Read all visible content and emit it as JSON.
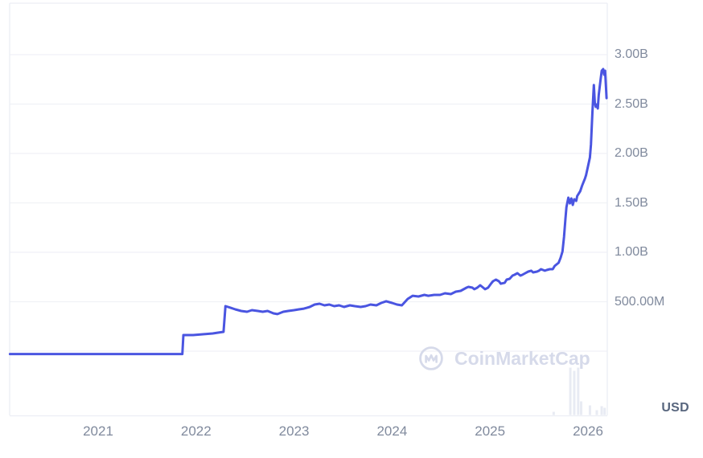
{
  "watermark": {
    "text": "CoinMarketCap"
  },
  "chart_data": {
    "type": "line",
    "title": "",
    "unit": "USD",
    "value_scale": "millions_usd",
    "legend": "none",
    "grid": "horizontal_only",
    "line_color": "#4a55e1",
    "x_axis": {
      "ticks": [
        {
          "label": "2021",
          "year": 2021
        },
        {
          "label": "2022",
          "year": 2022
        },
        {
          "label": "2023",
          "year": 2023
        },
        {
          "label": "2024",
          "year": 2024
        },
        {
          "label": "2025",
          "year": 2025
        },
        {
          "label": "2026",
          "year": 2026
        }
      ],
      "range_years": [
        2020.1,
        2026.28
      ]
    },
    "y_axis": {
      "position": "right",
      "ticks": [
        {
          "label": "3.00B",
          "value_m": 3000
        },
        {
          "label": "2.50B",
          "value_m": 2500
        },
        {
          "label": "2.00B",
          "value_m": 2000
        },
        {
          "label": "1.50B",
          "value_m": 1500
        },
        {
          "label": "1.00B",
          "value_m": 1000
        },
        {
          "label": "500.00M",
          "value_m": 500
        }
      ],
      "unlabeled_gridline_value_m": 0,
      "range_m": [
        -60,
        3100
      ]
    },
    "series": [
      {
        "name": "value-usd",
        "color": "#4a55e1",
        "points": [
          [
            2020.1,
            3
          ],
          [
            2020.6,
            3
          ],
          [
            2021.1,
            3
          ],
          [
            2021.6,
            3
          ],
          [
            2021.86,
            3
          ],
          [
            2021.87,
            195
          ],
          [
            2021.97,
            195
          ],
          [
            2022.07,
            203
          ],
          [
            2022.17,
            211
          ],
          [
            2022.23,
            220
          ],
          [
            2022.28,
            228
          ],
          [
            2022.3,
            488
          ],
          [
            2022.35,
            472
          ],
          [
            2022.4,
            455
          ],
          [
            2022.46,
            439
          ],
          [
            2022.52,
            431
          ],
          [
            2022.57,
            447
          ],
          [
            2022.63,
            439
          ],
          [
            2022.68,
            431
          ],
          [
            2022.73,
            439
          ],
          [
            2022.79,
            415
          ],
          [
            2022.83,
            407
          ],
          [
            2022.89,
            431
          ],
          [
            2022.94,
            439
          ],
          [
            2023.0,
            447
          ],
          [
            2023.05,
            455
          ],
          [
            2023.1,
            463
          ],
          [
            2023.16,
            480
          ],
          [
            2023.21,
            504
          ],
          [
            2023.26,
            512
          ],
          [
            2023.31,
            496
          ],
          [
            2023.36,
            504
          ],
          [
            2023.41,
            488
          ],
          [
            2023.46,
            496
          ],
          [
            2023.51,
            480
          ],
          [
            2023.57,
            496
          ],
          [
            2023.62,
            488
          ],
          [
            2023.68,
            480
          ],
          [
            2023.73,
            488
          ],
          [
            2023.78,
            504
          ],
          [
            2023.84,
            496
          ],
          [
            2023.89,
            520
          ],
          [
            2023.94,
            537
          ],
          [
            2024.0,
            520
          ],
          [
            2024.05,
            504
          ],
          [
            2024.1,
            496
          ],
          [
            2024.16,
            561
          ],
          [
            2024.21,
            593
          ],
          [
            2024.27,
            585
          ],
          [
            2024.33,
            602
          ],
          [
            2024.37,
            593
          ],
          [
            2024.43,
            602
          ],
          [
            2024.49,
            602
          ],
          [
            2024.54,
            618
          ],
          [
            2024.6,
            610
          ],
          [
            2024.65,
            634
          ],
          [
            2024.7,
            642
          ],
          [
            2024.76,
            675
          ],
          [
            2024.78,
            683
          ],
          [
            2024.82,
            675
          ],
          [
            2024.84,
            659
          ],
          [
            2024.87,
            675
          ],
          [
            2024.9,
            699
          ],
          [
            2024.92,
            683
          ],
          [
            2024.95,
            659
          ],
          [
            2024.98,
            675
          ],
          [
            2025.01,
            715
          ],
          [
            2025.03,
            740
          ],
          [
            2025.06,
            756
          ],
          [
            2025.09,
            740
          ],
          [
            2025.11,
            715
          ],
          [
            2025.15,
            724
          ],
          [
            2025.17,
            756
          ],
          [
            2025.2,
            764
          ],
          [
            2025.23,
            797
          ],
          [
            2025.25,
            805
          ],
          [
            2025.28,
            821
          ],
          [
            2025.31,
            797
          ],
          [
            2025.33,
            805
          ],
          [
            2025.36,
            821
          ],
          [
            2025.39,
            837
          ],
          [
            2025.42,
            846
          ],
          [
            2025.44,
            829
          ],
          [
            2025.48,
            837
          ],
          [
            2025.5,
            846
          ],
          [
            2025.52,
            862
          ],
          [
            2025.56,
            846
          ],
          [
            2025.58,
            854
          ],
          [
            2025.61,
            862
          ],
          [
            2025.64,
            862
          ],
          [
            2025.66,
            894
          ],
          [
            2025.7,
            927
          ],
          [
            2025.72,
            976
          ],
          [
            2025.74,
            1041
          ],
          [
            2025.755,
            1187
          ],
          [
            2025.77,
            1374
          ],
          [
            2025.78,
            1488
          ],
          [
            2025.79,
            1537
          ],
          [
            2025.8,
            1585
          ],
          [
            2025.815,
            1528
          ],
          [
            2025.83,
            1577
          ],
          [
            2025.845,
            1512
          ],
          [
            2025.86,
            1569
          ],
          [
            2025.88,
            1553
          ],
          [
            2025.89,
            1602
          ],
          [
            2025.92,
            1650
          ],
          [
            2025.94,
            1707
          ],
          [
            2025.97,
            1780
          ],
          [
            2025.98,
            1813
          ],
          [
            2026.0,
            1902
          ],
          [
            2026.02,
            1992
          ],
          [
            2026.03,
            2122
          ],
          [
            2026.045,
            2447
          ],
          [
            2026.06,
            2724
          ],
          [
            2026.07,
            2545
          ],
          [
            2026.08,
            2504
          ],
          [
            2026.09,
            2528
          ],
          [
            2026.1,
            2488
          ],
          [
            2026.11,
            2626
          ],
          [
            2026.13,
            2789
          ],
          [
            2026.14,
            2870
          ],
          [
            2026.155,
            2886
          ],
          [
            2026.165,
            2829
          ],
          [
            2026.175,
            2870
          ],
          [
            2026.19,
            2593
          ]
        ]
      }
    ],
    "volume_bars": {
      "color": "#e8ebf3",
      "bars": [
        [
          2025.65,
          4
        ],
        [
          2025.82,
          59
        ],
        [
          2025.86,
          55
        ],
        [
          2025.9,
          59
        ],
        [
          2025.93,
          17
        ],
        [
          2026.02,
          12
        ],
        [
          2026.09,
          6
        ],
        [
          2026.14,
          11
        ],
        [
          2026.17,
          9
        ]
      ]
    }
  },
  "colors": {
    "background": "#ffffff",
    "gridline": "#f0f1f6",
    "plot_border": "#eceef4",
    "tick_text": "#808a9d",
    "unit_text": "#58667e",
    "line": "#4a55e1",
    "watermark": "#d6daea",
    "volume_bar": "#e8ebf3"
  }
}
